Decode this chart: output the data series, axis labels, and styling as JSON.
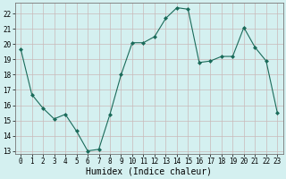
{
  "x": [
    0,
    1,
    2,
    3,
    4,
    5,
    6,
    7,
    8,
    9,
    10,
    11,
    12,
    13,
    14,
    15,
    16,
    17,
    18,
    19,
    20,
    21,
    22,
    23
  ],
  "y": [
    19.7,
    16.7,
    15.8,
    15.1,
    15.4,
    14.3,
    13.0,
    13.1,
    15.4,
    18.0,
    20.1,
    20.1,
    20.5,
    21.7,
    22.4,
    22.3,
    18.8,
    18.9,
    19.2,
    19.2,
    21.1,
    19.8,
    18.9,
    15.5
  ],
  "line_color": "#1a6b5a",
  "marker": "D",
  "marker_size": 2,
  "background_color": "#d4f0f0",
  "grid_major_color": "#c9b8b8",
  "grid_minor_color": "#d8cccc",
  "xlabel": "Humidex (Indice chaleur)",
  "xlim": [
    -0.5,
    23.5
  ],
  "ylim": [
    12.8,
    22.7
  ],
  "yticks": [
    13,
    14,
    15,
    16,
    17,
    18,
    19,
    20,
    21,
    22
  ],
  "xticks": [
    0,
    1,
    2,
    3,
    4,
    5,
    6,
    7,
    8,
    9,
    10,
    11,
    12,
    13,
    14,
    15,
    16,
    17,
    18,
    19,
    20,
    21,
    22,
    23
  ],
  "tick_fontsize": 5.5,
  "xlabel_fontsize": 7.0
}
